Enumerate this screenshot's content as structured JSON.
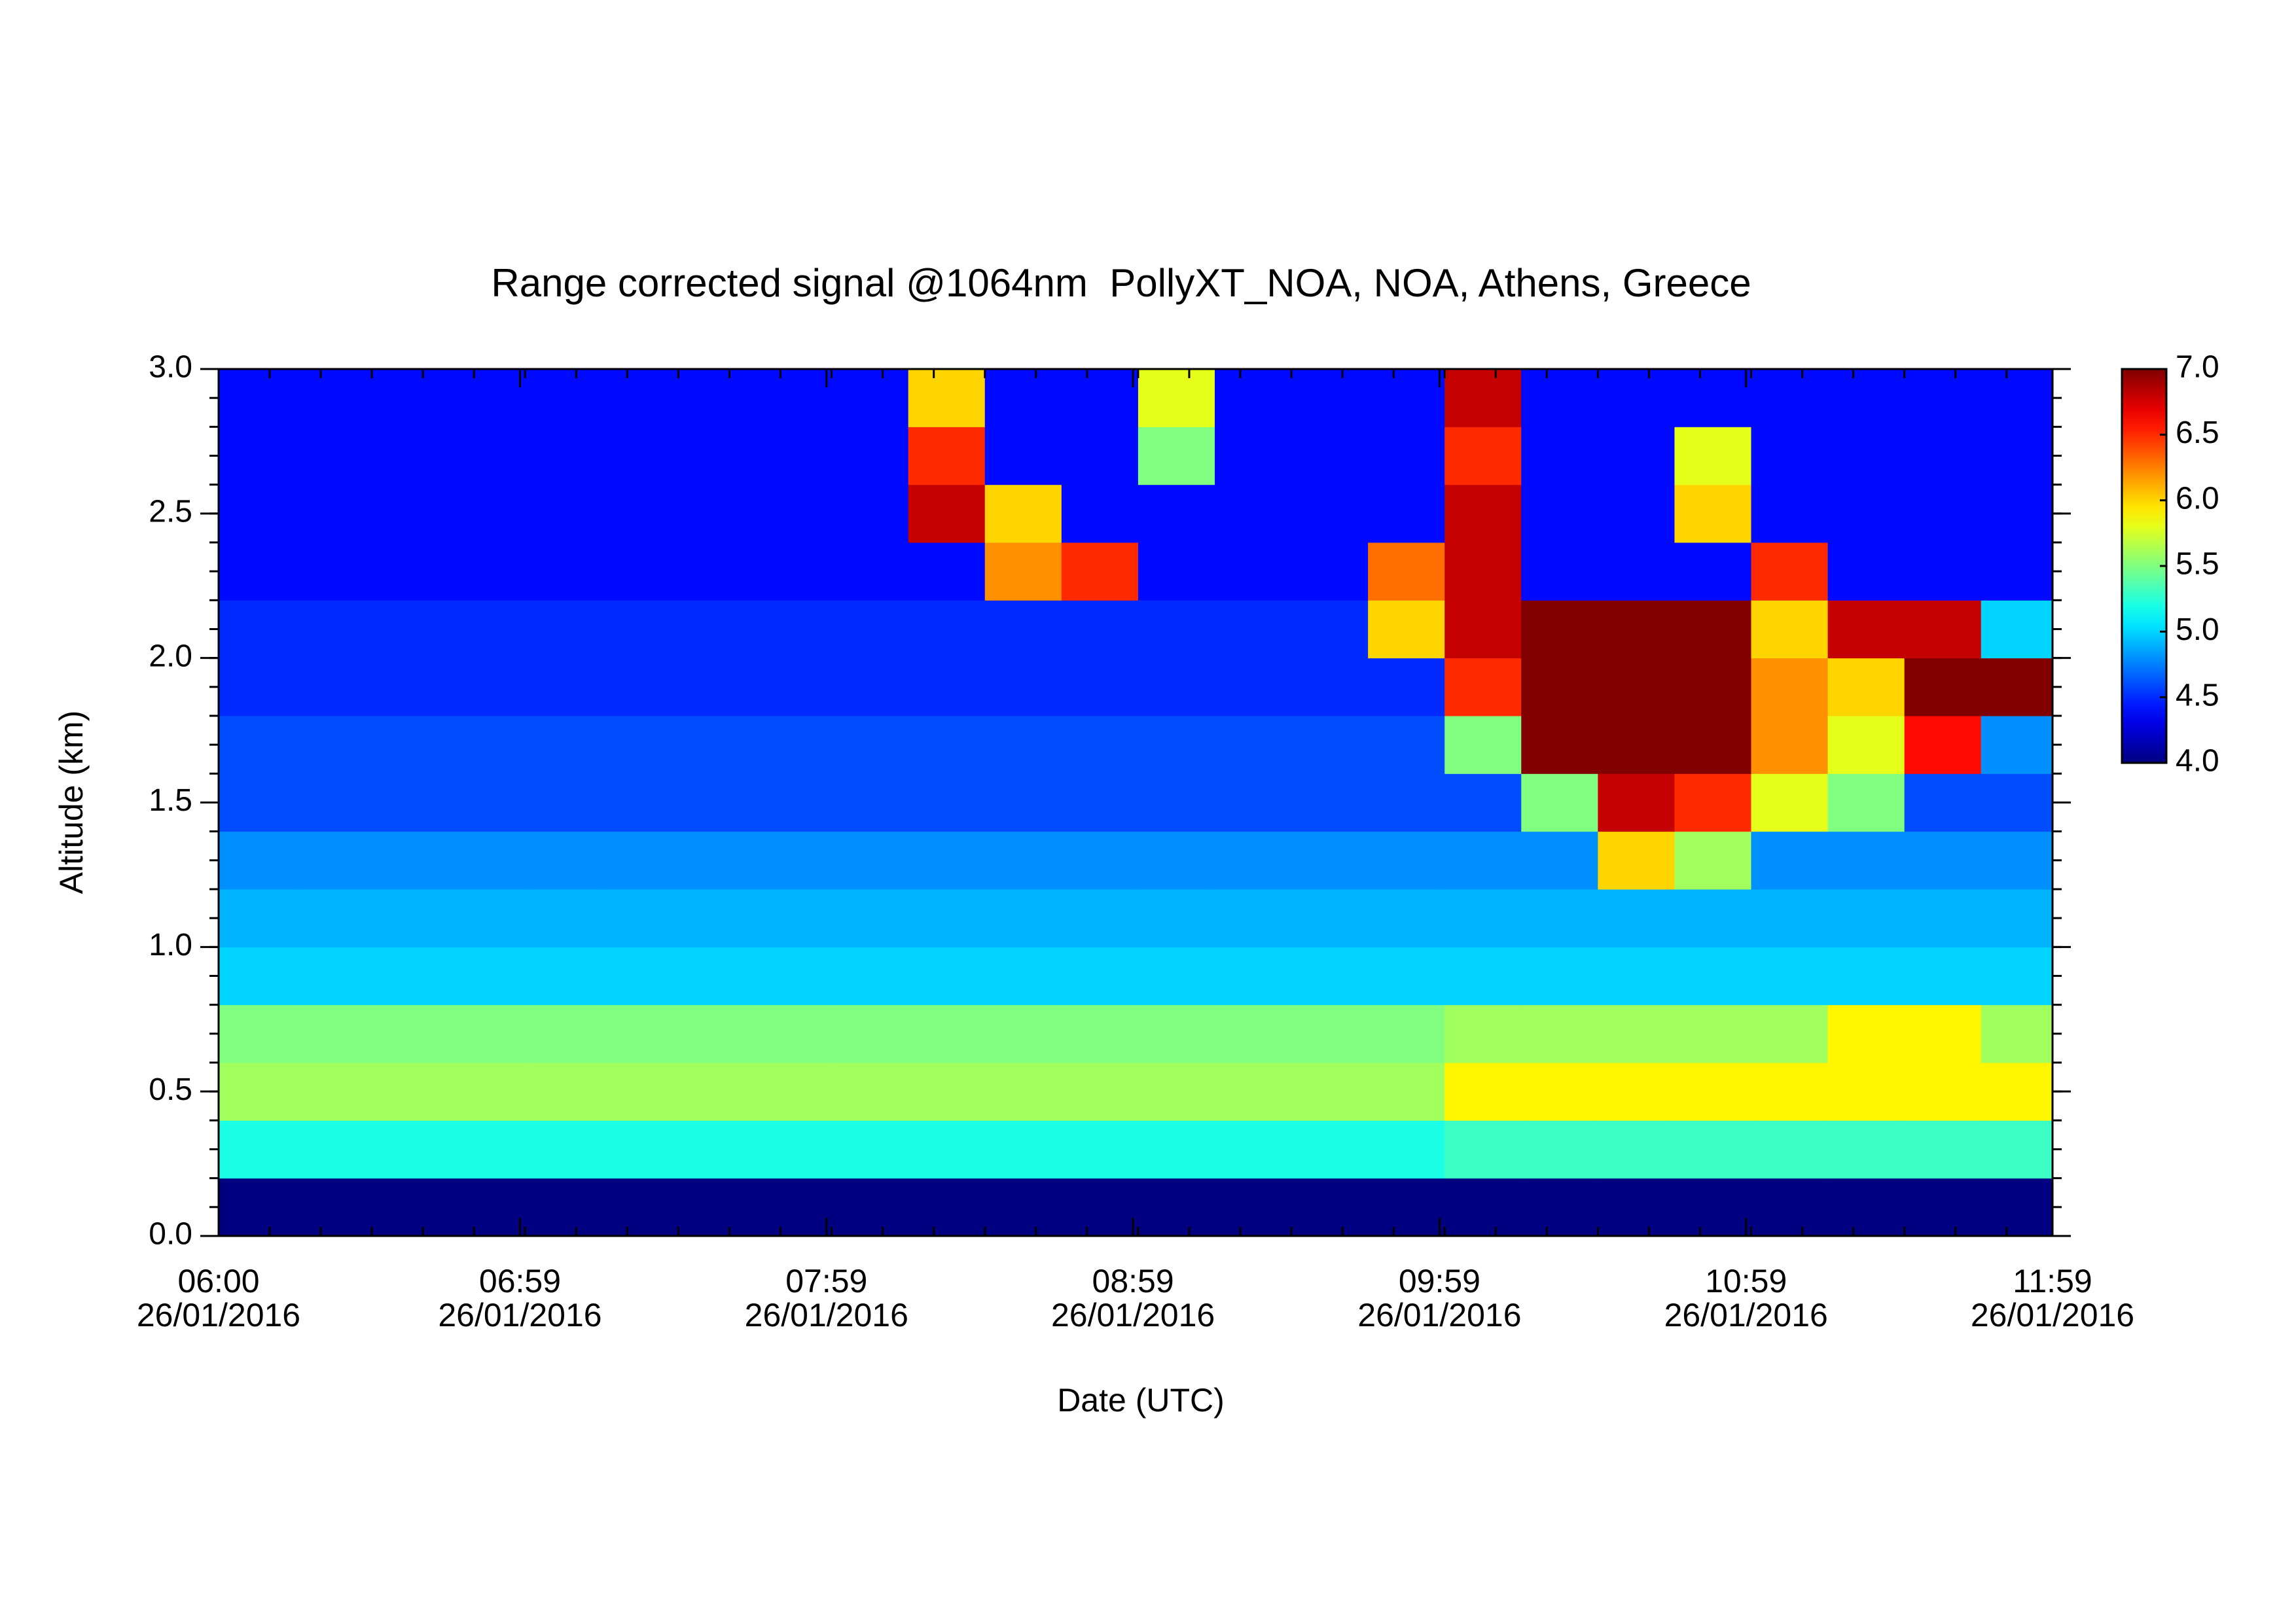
{
  "chart_data": {
    "type": "heatmap",
    "title": "Range corrected signal @1064nm  PollyXT_NOA, NOA, Athens, Greece",
    "xlabel": "Date (UTC)",
    "ylabel": "Altitude (km)",
    "colormap": "jet",
    "xlim": [
      "2016-01-26T06:00",
      "2016-01-26T11:59"
    ],
    "xticks": [
      {
        "value": "2016-01-26T06:00",
        "label": [
          "06:00",
          "26/01/2016"
        ]
      },
      {
        "value": "2016-01-26T06:59",
        "label": [
          "06:59",
          "26/01/2016"
        ]
      },
      {
        "value": "2016-01-26T07:59",
        "label": [
          "07:59",
          "26/01/2016"
        ]
      },
      {
        "value": "2016-01-26T08:59",
        "label": [
          "08:59",
          "26/01/2016"
        ]
      },
      {
        "value": "2016-01-26T09:59",
        "label": [
          "09:59",
          "26/01/2016"
        ]
      },
      {
        "value": "2016-01-26T10:59",
        "label": [
          "10:59",
          "26/01/2016"
        ]
      },
      {
        "value": "2016-01-26T11:59",
        "label": [
          "11:59",
          "26/01/2016"
        ]
      }
    ],
    "ylim": [
      0,
      3
    ],
    "yticks": [
      {
        "value": 0,
        "label": "0.0"
      },
      0.5,
      {
        "value": 1,
        "label": "1.0"
      },
      1.5,
      {
        "value": 2,
        "label": "2.0"
      },
      2.5,
      {
        "value": 3,
        "label": "3.0"
      }
    ],
    "zlim": [
      4,
      7
    ],
    "zticks": [
      {
        "value": 4,
        "label": "4.0"
      },
      4.5,
      {
        "value": 5,
        "label": "5.0"
      },
      5.5,
      {
        "value": 6,
        "label": "6.0"
      },
      6.5,
      {
        "value": 7,
        "label": "7.0"
      }
    ],
    "x": [
      "2016-01-26T06:00",
      "2016-01-26T06:15",
      "2016-01-26T06:30",
      "2016-01-26T06:45",
      "2016-01-26T07:00",
      "2016-01-26T07:15",
      "2016-01-26T07:30",
      "2016-01-26T07:45",
      "2016-01-26T08:00",
      "2016-01-26T08:15",
      "2016-01-26T08:30",
      "2016-01-26T08:45",
      "2016-01-26T09:00",
      "2016-01-26T09:15",
      "2016-01-26T09:30",
      "2016-01-26T09:45",
      "2016-01-26T10:00",
      "2016-01-26T10:15",
      "2016-01-26T10:30",
      "2016-01-26T10:45",
      "2016-01-26T11:00",
      "2016-01-26T11:15",
      "2016-01-26T11:30",
      "2016-01-26T11:45"
    ],
    "y": [
      0.1,
      0.3,
      0.5,
      0.7,
      0.9,
      1.1,
      1.3,
      1.5,
      1.7,
      1.9,
      2.1,
      2.3,
      2.5,
      2.7,
      2.9
    ],
    "z": [
      [
        4.0,
        4.0,
        4.0,
        4.0,
        4.0,
        4.0,
        4.0,
        4.0,
        4.0,
        4.0,
        4.0,
        4.0,
        4.0,
        4.0,
        4.0,
        4.0,
        4.0,
        4.0,
        4.0,
        4.0,
        4.0,
        4.0,
        4.0,
        4.0
      ],
      [
        5.2,
        5.2,
        5.2,
        5.2,
        5.2,
        5.2,
        5.2,
        5.2,
        5.2,
        5.2,
        5.2,
        5.2,
        5.2,
        5.2,
        5.2,
        5.2,
        5.3,
        5.3,
        5.3,
        5.3,
        5.3,
        5.3,
        5.3,
        5.3
      ],
      [
        5.6,
        5.6,
        5.6,
        5.6,
        5.6,
        5.6,
        5.6,
        5.6,
        5.6,
        5.6,
        5.6,
        5.6,
        5.6,
        5.6,
        5.6,
        5.6,
        5.9,
        5.9,
        5.9,
        5.9,
        5.9,
        5.9,
        5.9,
        5.9
      ],
      [
        5.5,
        5.5,
        5.5,
        5.5,
        5.5,
        5.5,
        5.5,
        5.5,
        5.5,
        5.5,
        5.5,
        5.5,
        5.5,
        5.5,
        5.5,
        5.5,
        5.6,
        5.6,
        5.6,
        5.6,
        5.6,
        5.9,
        5.9,
        5.6
      ],
      [
        5.0,
        5.0,
        5.0,
        5.0,
        5.0,
        5.0,
        5.0,
        5.0,
        5.0,
        5.0,
        5.0,
        5.0,
        5.0,
        5.0,
        5.0,
        5.0,
        5.0,
        5.0,
        5.0,
        5.0,
        5.0,
        5.0,
        5.0,
        5.0
      ],
      [
        4.9,
        4.9,
        4.9,
        4.9,
        4.9,
        4.9,
        4.9,
        4.9,
        4.9,
        4.9,
        4.9,
        4.9,
        4.9,
        4.9,
        4.9,
        4.9,
        4.9,
        4.9,
        4.9,
        4.9,
        4.9,
        4.9,
        4.9,
        4.9
      ],
      [
        4.8,
        4.8,
        4.8,
        4.8,
        4.8,
        4.8,
        4.8,
        4.8,
        4.8,
        4.8,
        4.8,
        4.8,
        4.8,
        4.8,
        4.8,
        4.8,
        4.8,
        4.8,
        6.0,
        5.6,
        4.8,
        4.8,
        4.8,
        4.8
      ],
      [
        4.6,
        4.6,
        4.6,
        4.6,
        4.6,
        4.6,
        4.6,
        4.6,
        4.6,
        4.6,
        4.6,
        4.6,
        4.6,
        4.6,
        4.6,
        4.6,
        4.6,
        5.5,
        6.8,
        6.5,
        5.8,
        5.5,
        4.6,
        4.6
      ],
      [
        4.6,
        4.6,
        4.6,
        4.6,
        4.6,
        4.6,
        4.6,
        4.6,
        4.6,
        4.6,
        4.6,
        4.6,
        4.6,
        4.6,
        4.6,
        4.6,
        5.5,
        7.0,
        7.0,
        7.0,
        6.2,
        5.8,
        6.6,
        4.8
      ],
      [
        4.5,
        4.5,
        4.5,
        4.5,
        4.5,
        4.5,
        4.5,
        4.5,
        4.5,
        4.5,
        4.5,
        4.5,
        4.5,
        4.5,
        4.5,
        4.5,
        6.5,
        7.0,
        7.0,
        7.0,
        6.2,
        6.0,
        7.0,
        7.0
      ],
      [
        4.5,
        4.5,
        4.5,
        4.5,
        4.5,
        4.5,
        4.5,
        4.5,
        4.5,
        4.5,
        4.5,
        4.5,
        4.5,
        4.5,
        4.5,
        6.0,
        6.8,
        7.0,
        7.0,
        7.0,
        6.0,
        6.8,
        6.8,
        5.0
      ],
      [
        4.4,
        4.4,
        4.4,
        4.4,
        4.4,
        4.4,
        4.4,
        4.4,
        4.4,
        4.4,
        6.2,
        6.5,
        4.4,
        4.4,
        4.4,
        6.3,
        6.8,
        4.4,
        4.4,
        4.4,
        6.5,
        4.4,
        4.4,
        4.4
      ],
      [
        4.4,
        4.4,
        4.4,
        4.4,
        4.4,
        4.4,
        4.4,
        4.4,
        4.4,
        6.8,
        6.0,
        4.4,
        4.4,
        4.4,
        4.4,
        4.4,
        6.8,
        4.4,
        4.4,
        6.0,
        4.4,
        4.4,
        4.4,
        4.4
      ],
      [
        4.4,
        4.4,
        4.4,
        4.4,
        4.4,
        4.4,
        4.4,
        4.4,
        4.4,
        6.5,
        4.4,
        4.4,
        5.5,
        4.4,
        4.4,
        4.4,
        6.5,
        4.4,
        4.4,
        5.8,
        4.4,
        4.4,
        4.4,
        4.4
      ],
      [
        4.4,
        4.4,
        4.4,
        4.4,
        4.4,
        4.4,
        4.4,
        4.4,
        4.4,
        6.0,
        4.4,
        4.4,
        5.8,
        4.4,
        4.4,
        4.4,
        6.8,
        4.4,
        4.4,
        4.4,
        4.4,
        4.4,
        4.4,
        4.4
      ]
    ]
  }
}
